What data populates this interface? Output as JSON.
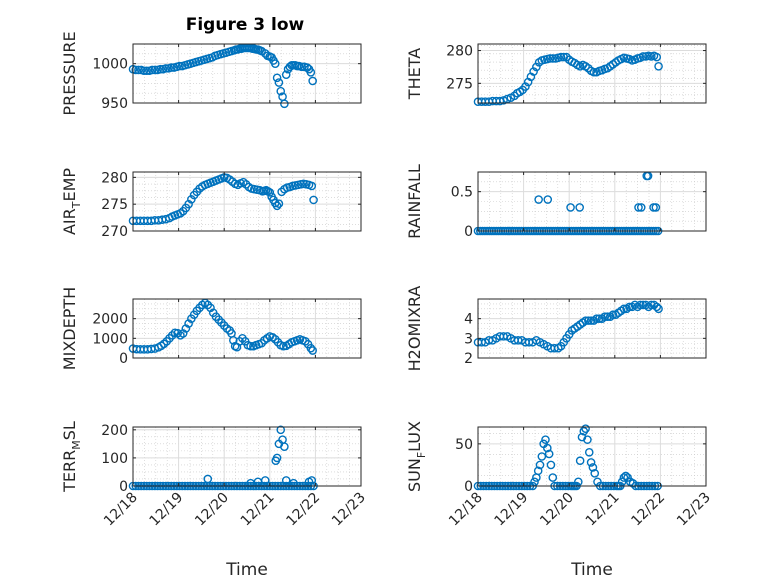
{
  "figure": {
    "title": "Figure 3 low",
    "marker_color": "#0072BD"
  },
  "chart_data": [
    {
      "type": "scatter",
      "title": "Figure 3 low",
      "ylabel": "PRESSURE",
      "xlabel": "",
      "x_range": [
        0,
        5
      ],
      "ylim": [
        950,
        1025
      ],
      "yticks": [
        950,
        1000
      ],
      "grid": true,
      "x": [
        0.0,
        0.06,
        0.12,
        0.18,
        0.24,
        0.3,
        0.36,
        0.42,
        0.48,
        0.54,
        0.6,
        0.66,
        0.72,
        0.78,
        0.84,
        0.9,
        0.96,
        1.02,
        1.08,
        1.14,
        1.2,
        1.26,
        1.32,
        1.38,
        1.44,
        1.5,
        1.56,
        1.62,
        1.68,
        1.74,
        1.8,
        1.86,
        1.92,
        1.98,
        2.04,
        2.1,
        2.16,
        2.22,
        2.26,
        2.3,
        2.34,
        2.38,
        2.42,
        2.46,
        2.5,
        2.54,
        2.58,
        2.62,
        2.66,
        2.7,
        2.74,
        2.78,
        2.82,
        2.9,
        2.95,
        3.0,
        3.04,
        3.08,
        3.12,
        3.16,
        3.2,
        3.24,
        3.28,
        3.32,
        3.36,
        3.4,
        3.44,
        3.48,
        3.52,
        3.56,
        3.6,
        3.64,
        3.7,
        3.76,
        3.82,
        3.86,
        3.9,
        3.94
      ],
      "y": [
        993,
        992,
        992,
        992,
        991,
        991,
        991,
        992,
        992,
        992,
        993,
        993,
        994,
        994,
        995,
        995,
        996,
        997,
        997,
        998,
        999,
        1000,
        1001,
        1002,
        1003,
        1004,
        1005,
        1006,
        1007,
        1008,
        1010,
        1011,
        1012,
        1013,
        1014,
        1015,
        1016,
        1017,
        1018,
        1018,
        1019,
        1019,
        1020,
        1020,
        1020,
        1020,
        1020,
        1019,
        1019,
        1018,
        1018,
        1017,
        1016,
        1013,
        1010,
        1009,
        1008,
        1004,
        1000,
        982,
        976,
        965,
        958,
        949,
        986,
        993,
        996,
        998,
        998,
        998,
        997,
        997,
        996,
        996,
        995,
        993,
        989,
        978
      ]
    },
    {
      "type": "scatter",
      "title": "",
      "ylabel": "THETA",
      "xlabel": "",
      "x_range": [
        0,
        5
      ],
      "ylim": [
        272,
        281
      ],
      "yticks": [
        275,
        280
      ],
      "grid": true,
      "x": [
        0.0,
        0.08,
        0.16,
        0.24,
        0.32,
        0.4,
        0.48,
        0.56,
        0.64,
        0.72,
        0.8,
        0.86,
        0.92,
        0.98,
        1.04,
        1.1,
        1.16,
        1.22,
        1.28,
        1.34,
        1.4,
        1.46,
        1.52,
        1.58,
        1.64,
        1.7,
        1.76,
        1.82,
        1.88,
        1.94,
        2.0,
        2.06,
        2.12,
        2.18,
        2.24,
        2.3,
        2.36,
        2.42,
        2.48,
        2.54,
        2.6,
        2.66,
        2.72,
        2.78,
        2.84,
        2.9,
        2.96,
        3.02,
        3.08,
        3.14,
        3.2,
        3.26,
        3.32,
        3.38,
        3.44,
        3.5,
        3.56,
        3.62,
        3.68,
        3.74,
        3.8,
        3.86,
        3.92,
        3.96
      ],
      "y": [
        272.2,
        272.2,
        272.2,
        272.2,
        272.3,
        272.3,
        272.3,
        272.4,
        272.6,
        272.8,
        273.1,
        273.5,
        273.7,
        274.0,
        274.5,
        275.2,
        276.0,
        276.8,
        277.5,
        278.2,
        278.5,
        278.6,
        278.7,
        278.8,
        278.8,
        278.8,
        278.9,
        279.0,
        279.0,
        279.0,
        278.6,
        278.3,
        278.1,
        277.8,
        277.6,
        277.8,
        277.6,
        277.3,
        276.9,
        276.7,
        276.7,
        276.9,
        277.0,
        277.2,
        277.3,
        277.6,
        277.9,
        278.2,
        278.5,
        278.7,
        278.9,
        278.8,
        278.7,
        278.5,
        278.6,
        278.8,
        278.9,
        279.1,
        279.1,
        279.2,
        279.1,
        279.2,
        279.0,
        277.6
      ]
    },
    {
      "type": "scatter",
      "title": "",
      "ylabel": "AIR_TEMP",
      "ylabel_main": "AIR",
      "ylabel_sub": "T",
      "ylabel_tail": "EMP",
      "xlabel": "",
      "x_range": [
        0,
        5
      ],
      "ylim": [
        270,
        281
      ],
      "yticks": [
        270,
        275,
        280
      ],
      "grid": true,
      "x": [
        0.0,
        0.08,
        0.16,
        0.24,
        0.32,
        0.4,
        0.48,
        0.56,
        0.64,
        0.72,
        0.8,
        0.86,
        0.92,
        0.98,
        1.04,
        1.1,
        1.16,
        1.22,
        1.28,
        1.34,
        1.4,
        1.46,
        1.52,
        1.58,
        1.64,
        1.7,
        1.76,
        1.82,
        1.88,
        1.94,
        2.0,
        2.06,
        2.12,
        2.18,
        2.24,
        2.3,
        2.36,
        2.42,
        2.48,
        2.54,
        2.6,
        2.66,
        2.72,
        2.78,
        2.84,
        2.88,
        2.92,
        2.96,
        3.0,
        3.04,
        3.08,
        3.12,
        3.16,
        3.2,
        3.26,
        3.32,
        3.38,
        3.44,
        3.5,
        3.56,
        3.62,
        3.68,
        3.74,
        3.8,
        3.86,
        3.92,
        3.96
      ],
      "y": [
        271.9,
        271.9,
        271.9,
        271.9,
        271.9,
        271.9,
        272.0,
        272.0,
        272.1,
        272.2,
        272.4,
        272.7,
        272.9,
        273.1,
        273.3,
        273.7,
        274.3,
        275.0,
        275.9,
        276.7,
        277.3,
        277.9,
        278.3,
        278.6,
        278.8,
        279.0,
        279.2,
        279.4,
        279.6,
        279.8,
        280.0,
        279.9,
        279.6,
        279.2,
        278.8,
        278.6,
        278.9,
        279.1,
        278.7,
        278.2,
        277.9,
        277.8,
        277.7,
        277.6,
        277.4,
        277.5,
        277.6,
        277.4,
        277.2,
        276.4,
        275.8,
        275.2,
        274.7,
        275.1,
        277.3,
        277.8,
        278.1,
        278.2,
        278.4,
        278.5,
        278.6,
        278.7,
        278.8,
        278.7,
        278.6,
        278.4,
        275.8
      ]
    },
    {
      "type": "scatter",
      "title": "",
      "ylabel": "RAINFALL",
      "xlabel": "",
      "x_range": [
        0,
        5
      ],
      "ylim": [
        0,
        0.75
      ],
      "yticks": [
        0,
        0.5
      ],
      "grid": true,
      "x": [
        0.0,
        0.05,
        0.1,
        0.15,
        0.2,
        0.25,
        0.3,
        0.35,
        0.4,
        0.45,
        0.5,
        0.55,
        0.6,
        0.65,
        0.7,
        0.75,
        0.8,
        0.85,
        0.9,
        0.95,
        1.0,
        1.05,
        1.1,
        1.15,
        1.2,
        1.25,
        1.3,
        1.35,
        1.4,
        1.45,
        1.5,
        1.55,
        1.6,
        1.65,
        1.7,
        1.75,
        1.8,
        1.85,
        1.9,
        1.95,
        2.0,
        2.05,
        2.1,
        2.15,
        2.2,
        2.25,
        2.3,
        2.35,
        2.4,
        2.45,
        2.5,
        2.55,
        2.6,
        2.65,
        2.7,
        2.75,
        2.8,
        2.85,
        2.9,
        2.95,
        3.0,
        3.05,
        3.1,
        3.15,
        3.2,
        3.25,
        3.3,
        3.35,
        3.4,
        3.45,
        3.5,
        3.55,
        3.6,
        3.65,
        3.7,
        3.75,
        3.8,
        3.85,
        3.9,
        3.95,
        1.33,
        1.53,
        2.03,
        2.23,
        3.52,
        3.58,
        3.7,
        3.73,
        3.85,
        3.9
      ],
      "y": [
        0,
        0,
        0,
        0,
        0,
        0,
        0,
        0,
        0,
        0,
        0,
        0,
        0,
        0,
        0,
        0,
        0,
        0,
        0,
        0,
        0,
        0,
        0,
        0,
        0,
        0,
        0,
        0,
        0,
        0,
        0,
        0,
        0,
        0,
        0,
        0,
        0,
        0,
        0,
        0,
        0,
        0,
        0,
        0,
        0,
        0,
        0,
        0,
        0,
        0,
        0,
        0,
        0,
        0,
        0,
        0,
        0,
        0,
        0,
        0,
        0,
        0,
        0,
        0,
        0,
        0,
        0,
        0,
        0,
        0,
        0,
        0,
        0,
        0,
        0,
        0,
        0,
        0,
        0,
        0,
        0.4,
        0.4,
        0.3,
        0.3,
        0.3,
        0.3,
        0.7,
        0.7,
        0.3,
        0.3
      ]
    },
    {
      "type": "scatter",
      "title": "",
      "ylabel": "MIXDEPTH",
      "xlabel": "",
      "x_range": [
        0,
        5
      ],
      "ylim": [
        0,
        3000
      ],
      "yticks": [
        0,
        1000,
        2000
      ],
      "grid": true,
      "x": [
        0.0,
        0.08,
        0.16,
        0.24,
        0.32,
        0.4,
        0.48,
        0.56,
        0.62,
        0.68,
        0.74,
        0.8,
        0.86,
        0.92,
        0.98,
        1.04,
        1.1,
        1.16,
        1.22,
        1.28,
        1.34,
        1.4,
        1.46,
        1.52,
        1.58,
        1.64,
        1.7,
        1.76,
        1.82,
        1.88,
        1.94,
        2.0,
        2.06,
        2.12,
        2.16,
        2.2,
        2.24,
        2.28,
        2.34,
        2.4,
        2.46,
        2.52,
        2.58,
        2.64,
        2.7,
        2.76,
        2.82,
        2.88,
        2.94,
        3.0,
        3.06,
        3.12,
        3.18,
        3.24,
        3.3,
        3.36,
        3.42,
        3.48,
        3.54,
        3.6,
        3.66,
        3.72,
        3.78,
        3.84,
        3.9,
        3.94
      ],
      "y": [
        480,
        450,
        440,
        440,
        440,
        460,
        480,
        540,
        620,
        720,
        850,
        1000,
        1150,
        1280,
        1260,
        1150,
        1250,
        1500,
        1750,
        2000,
        2200,
        2400,
        2550,
        2700,
        2800,
        2700,
        2550,
        2300,
        2100,
        1950,
        1800,
        1650,
        1500,
        1400,
        1250,
        900,
        600,
        550,
        850,
        1000,
        850,
        650,
        600,
        600,
        650,
        700,
        750,
        900,
        1000,
        1100,
        1050,
        950,
        800,
        650,
        600,
        620,
        700,
        800,
        850,
        900,
        950,
        900,
        850,
        700,
        500,
        380
      ]
    },
    {
      "type": "scatter",
      "title": "",
      "ylabel": "H2OMIXRA",
      "xlabel": "",
      "x_range": [
        0,
        5
      ],
      "ylim": [
        2,
        5
      ],
      "yticks": [
        2,
        3,
        4
      ],
      "grid": true,
      "x": [
        0.0,
        0.08,
        0.16,
        0.24,
        0.32,
        0.4,
        0.48,
        0.56,
        0.64,
        0.72,
        0.8,
        0.88,
        0.96,
        1.04,
        1.12,
        1.2,
        1.28,
        1.36,
        1.44,
        1.52,
        1.6,
        1.68,
        1.76,
        1.82,
        1.88,
        1.94,
        2.0,
        2.06,
        2.12,
        2.18,
        2.24,
        2.3,
        2.36,
        2.42,
        2.48,
        2.54,
        2.6,
        2.66,
        2.72,
        2.78,
        2.84,
        2.9,
        2.96,
        3.02,
        3.08,
        3.14,
        3.2,
        3.26,
        3.32,
        3.38,
        3.44,
        3.5,
        3.56,
        3.62,
        3.68,
        3.74,
        3.8,
        3.86,
        3.92,
        3.96
      ],
      "y": [
        2.8,
        2.8,
        2.8,
        2.9,
        2.9,
        3.0,
        3.1,
        3.1,
        3.1,
        3.0,
        2.9,
        2.9,
        2.9,
        2.8,
        2.8,
        2.8,
        2.9,
        2.8,
        2.7,
        2.6,
        2.5,
        2.5,
        2.5,
        2.6,
        2.8,
        3.0,
        3.2,
        3.4,
        3.5,
        3.6,
        3.7,
        3.8,
        3.9,
        3.9,
        3.9,
        3.9,
        4.0,
        4.0,
        4.0,
        4.1,
        4.1,
        4.1,
        4.2,
        4.2,
        4.3,
        4.4,
        4.5,
        4.5,
        4.6,
        4.6,
        4.7,
        4.6,
        4.7,
        4.7,
        4.7,
        4.6,
        4.7,
        4.7,
        4.6,
        4.5
      ]
    },
    {
      "type": "scatter",
      "title": "",
      "ylabel": "TERR_MSL",
      "ylabel_main": "TERR",
      "ylabel_sub": "M",
      "ylabel_tail": "SL",
      "xlabel": "Time",
      "x_range": [
        0,
        5
      ],
      "xticks": [
        "12/18",
        "12/19",
        "12/20",
        "12/21",
        "12/22",
        "12/23"
      ],
      "ylim": [
        0,
        210
      ],
      "yticks": [
        0,
        100,
        200
      ],
      "grid": true,
      "x": [
        0.0,
        0.06,
        0.12,
        0.18,
        0.24,
        0.3,
        0.36,
        0.42,
        0.48,
        0.54,
        0.6,
        0.66,
        0.72,
        0.78,
        0.84,
        0.9,
        0.96,
        1.02,
        1.08,
        1.14,
        1.2,
        1.26,
        1.32,
        1.38,
        1.44,
        1.5,
        1.56,
        1.62,
        1.68,
        1.74,
        1.8,
        1.86,
        1.92,
        1.98,
        2.04,
        2.1,
        2.16,
        2.22,
        2.28,
        2.34,
        2.4,
        2.46,
        2.52,
        2.58,
        2.64,
        2.7,
        2.76,
        2.82,
        2.88,
        2.94,
        3.0,
        3.06,
        3.12,
        3.18,
        3.24,
        3.3,
        3.36,
        3.42,
        3.48,
        3.54,
        3.6,
        3.66,
        3.72,
        3.78,
        3.84,
        3.9,
        3.96,
        1.64,
        2.58,
        2.74,
        2.9,
        3.13,
        3.16,
        3.2,
        3.24,
        3.28,
        3.32,
        3.36,
        3.52,
        3.86,
        3.92
      ],
      "y": [
        0,
        0,
        0,
        0,
        0,
        0,
        0,
        0,
        0,
        0,
        0,
        0,
        0,
        0,
        0,
        0,
        0,
        0,
        0,
        0,
        0,
        0,
        0,
        0,
        0,
        0,
        0,
        0,
        0,
        0,
        0,
        0,
        0,
        0,
        0,
        0,
        0,
        0,
        0,
        0,
        0,
        0,
        0,
        0,
        0,
        0,
        0,
        0,
        0,
        0,
        0,
        0,
        0,
        0,
        0,
        0,
        0,
        0,
        0,
        0,
        0,
        0,
        0,
        0,
        0,
        0,
        0,
        25,
        10,
        15,
        20,
        90,
        100,
        150,
        200,
        165,
        140,
        20,
        10,
        15,
        20
      ]
    },
    {
      "type": "scatter",
      "title": "",
      "ylabel": "SUN_FLUX",
      "ylabel_main": "SUN",
      "ylabel_sub": "F",
      "ylabel_tail": "LUX",
      "xlabel": "Time",
      "x_range": [
        0,
        5
      ],
      "xticks": [
        "12/18",
        "12/19",
        "12/20",
        "12/21",
        "12/22",
        "12/23"
      ],
      "ylim": [
        0,
        70
      ],
      "yticks": [
        0,
        50
      ],
      "grid": true,
      "x": [
        0.0,
        0.06,
        0.12,
        0.18,
        0.24,
        0.3,
        0.36,
        0.42,
        0.48,
        0.54,
        0.6,
        0.66,
        0.72,
        0.78,
        0.84,
        0.9,
        0.96,
        1.02,
        1.08,
        1.14,
        1.2,
        1.24,
        1.28,
        1.32,
        1.36,
        1.4,
        1.44,
        1.48,
        1.52,
        1.56,
        1.6,
        1.64,
        1.68,
        1.74,
        1.8,
        1.86,
        1.92,
        1.98,
        2.04,
        2.08,
        2.12,
        2.16,
        2.2,
        2.24,
        2.28,
        2.32,
        2.36,
        2.4,
        2.44,
        2.48,
        2.52,
        2.56,
        2.62,
        2.68,
        2.74,
        2.8,
        2.86,
        2.92,
        2.98,
        3.04,
        3.08,
        3.12,
        3.16,
        3.2,
        3.24,
        3.28,
        3.34,
        3.4,
        3.46,
        3.52,
        3.58,
        3.64,
        3.7,
        3.76,
        3.82,
        3.88,
        3.94
      ],
      "y": [
        0,
        0,
        0,
        0,
        0,
        0,
        0,
        0,
        0,
        0,
        0,
        0,
        0,
        0,
        0,
        0,
        0,
        0,
        0,
        0,
        0,
        5,
        10,
        18,
        25,
        35,
        50,
        55,
        45,
        38,
        25,
        10,
        0,
        0,
        0,
        0,
        0,
        0,
        0,
        0,
        0,
        0,
        5,
        30,
        58,
        65,
        68,
        55,
        40,
        28,
        22,
        15,
        5,
        0,
        0,
        0,
        0,
        0,
        0,
        0,
        0,
        0,
        5,
        10,
        12,
        10,
        5,
        3,
        0,
        0,
        0,
        0,
        0,
        0,
        0,
        0,
        0
      ]
    }
  ]
}
